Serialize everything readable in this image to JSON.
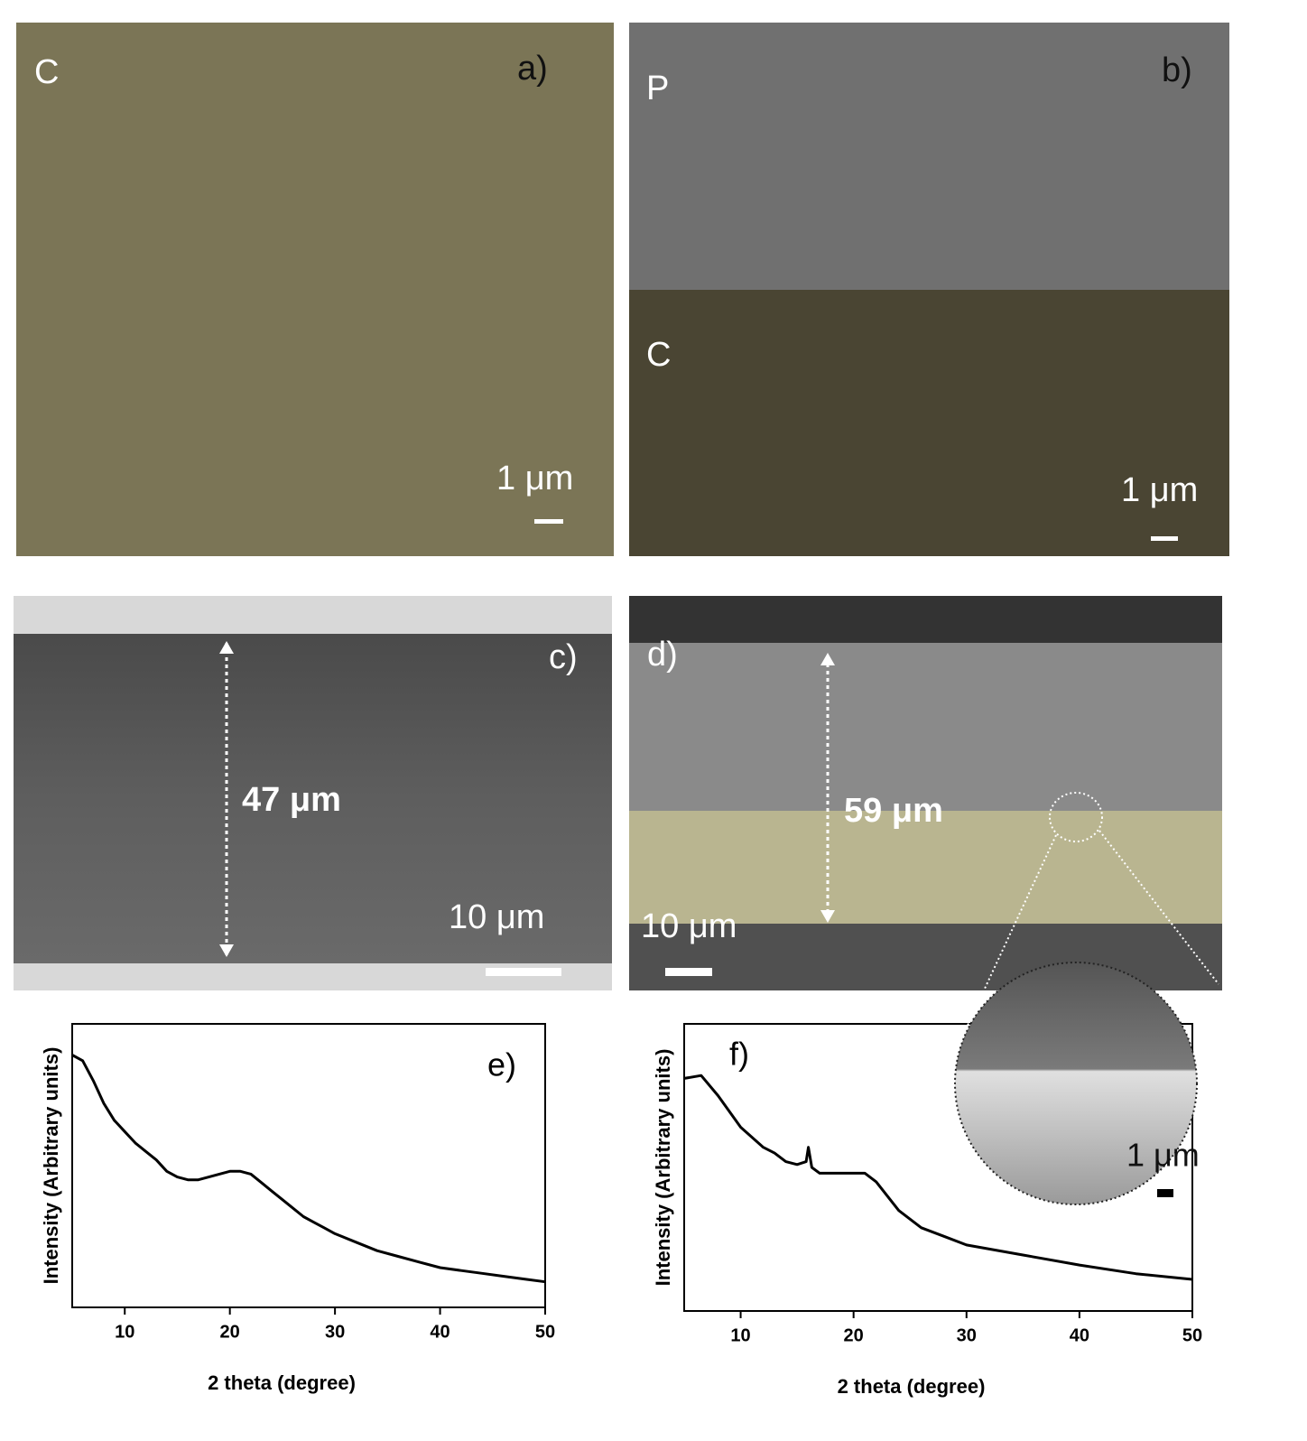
{
  "panels": [
    {
      "label": "a)",
      "layer": "C",
      "scale": "1 μm"
    },
    {
      "label": "b)",
      "layer_top": "P",
      "layer_bottom": "C",
      "scale": "1 μm"
    },
    {
      "label": "c)",
      "thickness": "47 μm",
      "scale": "10 μm"
    },
    {
      "label": "d)",
      "thickness": "59 μm",
      "scale": "10 μm",
      "inset_scale": "1 μm"
    }
  ],
  "chart_data": [
    {
      "type": "line",
      "annotation": "e)",
      "xlabel": "2 theta (degree)",
      "ylabel": "Intensity (Arbitrary units)",
      "color": "#000000",
      "x": [
        5,
        6,
        7,
        8,
        9,
        10,
        11,
        12,
        13,
        14,
        15,
        16,
        17,
        18,
        19,
        20,
        21,
        22,
        23,
        24,
        25,
        26,
        27,
        28,
        29,
        30,
        32,
        34,
        36,
        38,
        40,
        42,
        44,
        46,
        48,
        50
      ],
      "values": [
        89,
        87,
        80,
        72,
        66,
        62,
        58,
        55,
        52,
        48,
        46,
        45,
        45,
        46,
        47,
        48,
        48,
        47,
        44,
        41,
        38,
        35,
        32,
        30,
        28,
        26,
        23,
        20,
        18,
        16,
        14,
        13,
        12,
        11,
        10,
        9
      ],
      "xlim": [
        5,
        50
      ],
      "xticks": [
        10,
        20,
        30,
        40,
        50
      ],
      "ylim": [
        0,
        100
      ]
    },
    {
      "type": "line",
      "annotation": "f)",
      "xlabel": "2 theta (degree)",
      "ylabel": "Intensity (Arbitrary units)",
      "color": "#000000",
      "x": [
        5,
        6.5,
        8,
        10,
        12,
        13,
        14,
        15,
        15.8,
        16,
        16.3,
        17,
        18,
        20,
        21,
        22,
        24,
        26,
        28,
        30,
        35,
        40,
        45,
        50
      ],
      "values": [
        81,
        82,
        75,
        64,
        57,
        55,
        52,
        51,
        52,
        57,
        50,
        48,
        48,
        48,
        48,
        45,
        35,
        29,
        26,
        23,
        19.5,
        16,
        13,
        11
      ],
      "xlim": [
        5,
        50
      ],
      "xticks": [
        10,
        20,
        30,
        40,
        50
      ],
      "ylim": [
        0,
        100
      ]
    }
  ]
}
